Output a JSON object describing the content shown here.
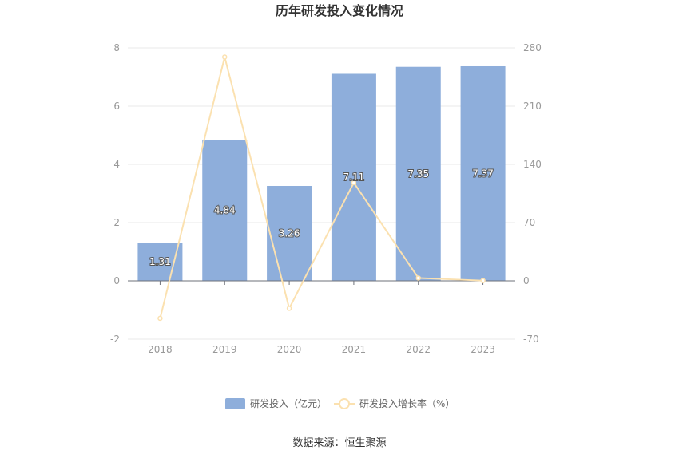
{
  "chart_data": {
    "type": "bar",
    "title": "历年研发投入变化情况",
    "categories": [
      "2018",
      "2019",
      "2020",
      "2021",
      "2022",
      "2023"
    ],
    "series": [
      {
        "name": "研发投入（亿元）",
        "type": "bar",
        "axis": "left",
        "color": "#8eaedb",
        "values": [
          1.31,
          4.84,
          3.26,
          7.11,
          7.35,
          7.37
        ],
        "labels": [
          "1.31",
          "4.84",
          "3.26",
          "7.11",
          "7.35",
          "7.37"
        ]
      },
      {
        "name": "研发投入增长率（%）",
        "type": "line",
        "axis": "right",
        "color": "#fbe1b0",
        "values": [
          -45,
          269,
          -33,
          118,
          3.4,
          0.3
        ]
      }
    ],
    "y_left": {
      "min": -2,
      "max": 8,
      "ticks": [
        "-2",
        "0",
        "2",
        "4",
        "6",
        "8"
      ],
      "tick_values": [
        -2,
        0,
        2,
        4,
        6,
        8
      ]
    },
    "y_right": {
      "min": -70,
      "max": 280,
      "ticks": [
        "-70",
        "0",
        "70",
        "140",
        "210",
        "280"
      ],
      "tick_values": [
        -70,
        0,
        70,
        140,
        210,
        280
      ]
    },
    "grid": true,
    "legend_position": "bottom"
  },
  "source_text": "数据来源：恒生聚源"
}
